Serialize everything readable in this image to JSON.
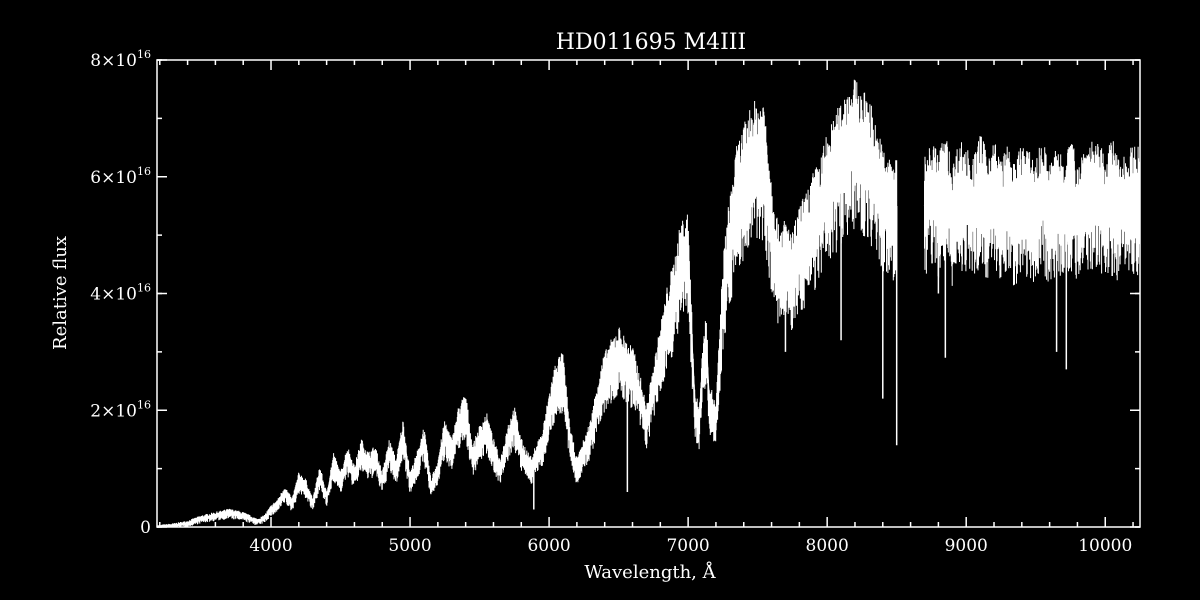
{
  "chart_data": {
    "type": "line",
    "title": "HD011695   M4III",
    "xlabel": "Wavelength, Å",
    "ylabel": "Relative flux",
    "xlim": [
      3180,
      10250
    ],
    "ylim": [
      0,
      8e+16
    ],
    "grid": false,
    "background": "#000000",
    "line_color": "#ffffff",
    "x_ticks": [
      {
        "value": 4000,
        "label": "4000"
      },
      {
        "value": 5000,
        "label": "5000"
      },
      {
        "value": 6000,
        "label": "6000"
      },
      {
        "value": 7000,
        "label": "7000"
      },
      {
        "value": 8000,
        "label": "8000"
      },
      {
        "value": 9000,
        "label": "9000"
      },
      {
        "value": 10000,
        "label": "10000"
      }
    ],
    "x_minor_step": 200,
    "y_ticks": [
      {
        "value": 0,
        "mantissa": "0",
        "exponent": ""
      },
      {
        "value": 2e+16,
        "mantissa": "2×10",
        "exponent": "16"
      },
      {
        "value": 4e+16,
        "mantissa": "4×10",
        "exponent": "16"
      },
      {
        "value": 6e+16,
        "mantissa": "6×10",
        "exponent": "16"
      },
      {
        "value": 8e+16,
        "mantissa": "8×10",
        "exponent": "16"
      }
    ],
    "y_minor_step": 1e+16,
    "series": [
      {
        "segments": [
          {
            "x": [
              3180,
              3300,
              3400,
              3500,
              3600,
              3700,
              3800,
              3900,
              3950,
              4000,
              4050,
              4100,
              4150,
              4200,
              4250,
              4300,
              4350,
              4400,
              4450,
              4500,
              4550,
              4600,
              4650,
              4700,
              4750,
              4800,
              4850,
              4900,
              4950,
              5000,
              5050,
              5100,
              5150,
              5200,
              5250,
              5300,
              5350,
              5400,
              5450,
              5500,
              5550,
              5600,
              5650,
              5700,
              5750,
              5800,
              5850,
              5880,
              5900,
              5950,
              6000,
              6050,
              6100,
              6150,
              6200,
              6250,
              6300,
              6350,
              6400,
              6450,
              6500,
              6550,
              6600,
              6650,
              6700,
              6750,
              6800,
              6850,
              6900,
              6950,
              7000,
              7030,
              7050,
              7080,
              7100,
              7130,
              7150,
              7200,
              7250,
              7300,
              7350,
              7400,
              7450,
              7500,
              7550,
              7600,
              7650,
              7700,
              7750,
              7800,
              7850,
              7900,
              7950,
              8000,
              8050,
              8100,
              8150,
              8200,
              8250,
              8300,
              8350,
              8400,
              8450,
              8500
            ],
            "y": [
              0.0,
              300000000000000.0,
              700000000000000.0,
              1500000000000000.0,
              2000000000000000.0,
              2500000000000000.0,
              2000000000000000.0,
              1000000000000000.0,
              1500000000000000.0,
              3000000000000000.0,
              4000000000000000.0,
              6000000000000000.0,
              4000000000000000.0,
              8000000000000000.0,
              7000000000000000.0,
              4000000000000000.0,
              9000000000000000.0,
              5000000000000000.0,
              1.1e+16,
              8000000000000000.0,
              1.2e+16,
              9000000000000000.0,
              1.3e+16,
              1.1e+16,
              1.2e+16,
              8000000000000000.0,
              1.3e+16,
              1e+16,
              1.6e+16,
              8000000000000000.0,
              1.1e+16,
              1.5e+16,
              7000000000000000.0,
              1e+16,
              1.6e+16,
              1.3e+16,
              1.8e+16,
              2e+16,
              1.2e+16,
              1.5e+16,
              1.7e+16,
              1.3e+16,
              1e+16,
              1.5e+16,
              1.8e+16,
              1.3e+16,
              1.1e+16,
              1e+16,
              1.2e+16,
              1.4e+16,
              2e+16,
              2.5e+16,
              2.6e+16,
              1.5e+16,
              1e+16,
              1.3e+16,
              1.6e+16,
              2.2e+16,
              2.6e+16,
              2.8e+16,
              3e+16,
              2.8e+16,
              2.7e+16,
              2.3e+16,
              1.8e+16,
              2.4e+16,
              3e+16,
              3.6e+16,
              4e+16,
              4.6e+16,
              4.7e+16,
              3e+16,
              2e+16,
              1.8e+16,
              2.6e+16,
              3.2e+16,
              2.2e+16,
              1.8e+16,
              4e+16,
              5e+16,
              5.7e+16,
              6e+16,
              6.3e+16,
              6.4e+16,
              6.4e+16,
              5.2e+16,
              4.5e+16,
              4.6e+16,
              4.4e+16,
              4.8e+16,
              5e+16,
              5.3e+16,
              5.5e+16,
              5.9e+16,
              6.1e+16,
              6.4e+16,
              6.6e+16,
              6.7e+16,
              6.5e+16,
              6.5e+16,
              6e+16,
              5.7e+16,
              5.5e+16,
              5.6e+16
            ]
          },
          {
            "x": [
              8700,
              8750,
              8800,
              8850,
              8900,
              8950,
              9000,
              9050,
              9100,
              9150,
              9200,
              9250,
              9300,
              9350,
              9400,
              9450,
              9500,
              9550,
              9600,
              9650,
              9700,
              9750,
              9800,
              9850,
              9900,
              9950,
              10000,
              10050,
              10100,
              10150,
              10200,
              10250
            ],
            "y": [
              5.5e+16,
              5.8e+16,
              5.6e+16,
              5.9e+16,
              5.4e+16,
              5.8e+16,
              5.7e+16,
              5.5e+16,
              5.9e+16,
              5.6e+16,
              5.8e+16,
              5.5e+16,
              5.7e+16,
              5.4e+16,
              5.8e+16,
              5.6e+16,
              5.5e+16,
              5.8e+16,
              5.4e+16,
              5.7e+16,
              5.6e+16,
              5.8e+16,
              5.5e+16,
              5.7e+16,
              5.8e+16,
              5.7e+16,
              5.6e+16,
              5.8e+16,
              5.5e+16,
              5.6e+16,
              5.7e+16,
              5.7e+16
            ]
          }
        ],
        "absorption_lines": [
          {
            "x": 5890,
            "y": 3000000000000000.0
          },
          {
            "x": 6563,
            "y": 6000000000000000.0
          },
          {
            "x": 7700,
            "y": 3e+16
          },
          {
            "x": 8100,
            "y": 3.2e+16
          },
          {
            "x": 8400,
            "y": 2.2e+16
          },
          {
            "x": 8500,
            "y": 1.4e+16
          },
          {
            "x": 8800,
            "y": 4e+16
          },
          {
            "x": 8850,
            "y": 2.9e+16
          },
          {
            "x": 9650,
            "y": 3e+16
          },
          {
            "x": 9720,
            "y": 2.7e+16
          },
          {
            "x": 10050,
            "y": 4.3e+16
          }
        ]
      }
    ]
  }
}
